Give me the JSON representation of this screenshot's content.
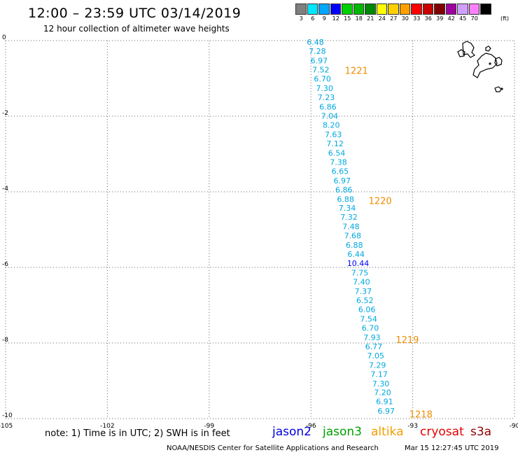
{
  "header": {
    "title": "12:00 – 23:59 UTC 03/14/2019",
    "subtitle": "12 hour collection of altimeter wave heights"
  },
  "color_scale": {
    "unit": "(ft)",
    "items": [
      {
        "label": "3",
        "color": "#7f7f7f"
      },
      {
        "label": "6",
        "color": "#00e8ff"
      },
      {
        "label": "9",
        "color": "#00a8ff"
      },
      {
        "label": "12",
        "color": "#0000ff"
      },
      {
        "label": "15",
        "color": "#00d000"
      },
      {
        "label": "18",
        "color": "#00b800"
      },
      {
        "label": "21",
        "color": "#008800"
      },
      {
        "label": "24",
        "color": "#ffff00"
      },
      {
        "label": "27",
        "color": "#ffd000"
      },
      {
        "label": "30",
        "color": "#ffa000"
      },
      {
        "label": "33",
        "color": "#ff0000"
      },
      {
        "label": "36",
        "color": "#c80000"
      },
      {
        "label": "39",
        "color": "#800000"
      },
      {
        "label": "42",
        "color": "#a000a0"
      },
      {
        "label": "45",
        "color": "#d0a0ff"
      },
      {
        "label": "70",
        "color": "#ff80ff"
      },
      {
        "label": "",
        "color": "#000000"
      }
    ]
  },
  "chart_data": {
    "type": "scatter",
    "xlim": [
      -105,
      -90
    ],
    "ylim": [
      -10,
      0
    ],
    "x_ticks": [
      "-105",
      "-102",
      "-99",
      "-96",
      "-93",
      "-90"
    ],
    "y_ticks": [
      "0",
      "-2",
      "-4",
      "-6",
      "-8",
      "-10"
    ],
    "grid": true,
    "points": [
      {
        "lon": -95.87,
        "lat": -0.04,
        "swh": "6.48",
        "color": "#00a8e0"
      },
      {
        "lon": -95.81,
        "lat": -0.28,
        "swh": "7.28",
        "color": "#00a8e0"
      },
      {
        "lon": -95.76,
        "lat": -0.53,
        "swh": "6.97",
        "color": "#00a8e0"
      },
      {
        "lon": -95.71,
        "lat": -0.77,
        "swh": "7.52",
        "color": "#00a8e0"
      },
      {
        "lon": -95.66,
        "lat": -1.01,
        "swh": "6.70",
        "color": "#00a8e0"
      },
      {
        "lon": -95.6,
        "lat": -1.26,
        "swh": "7.30",
        "color": "#00a8e0"
      },
      {
        "lon": -95.55,
        "lat": -1.5,
        "swh": "7.23",
        "color": "#00a8e0"
      },
      {
        "lon": -95.5,
        "lat": -1.75,
        "swh": "6.86",
        "color": "#00a8e0"
      },
      {
        "lon": -95.45,
        "lat": -1.99,
        "swh": "7.04",
        "color": "#00a8e0"
      },
      {
        "lon": -95.4,
        "lat": -2.23,
        "swh": "8.20",
        "color": "#00a8e0"
      },
      {
        "lon": -95.34,
        "lat": -2.48,
        "swh": "7.63",
        "color": "#00a8e0"
      },
      {
        "lon": -95.29,
        "lat": -2.72,
        "swh": "7.12",
        "color": "#00a8e0"
      },
      {
        "lon": -95.24,
        "lat": -2.97,
        "swh": "6.54",
        "color": "#00a8e0"
      },
      {
        "lon": -95.19,
        "lat": -3.21,
        "swh": "7.38",
        "color": "#00a8e0"
      },
      {
        "lon": -95.14,
        "lat": -3.45,
        "swh": "6.65",
        "color": "#00a8e0"
      },
      {
        "lon": -95.08,
        "lat": -3.7,
        "swh": "6.97",
        "color": "#00a8e0"
      },
      {
        "lon": -95.03,
        "lat": -3.94,
        "swh": "6.86",
        "color": "#00a8e0"
      },
      {
        "lon": -94.98,
        "lat": -4.19,
        "swh": "6.88",
        "color": "#00a8e0"
      },
      {
        "lon": -94.93,
        "lat": -4.43,
        "swh": "7.34",
        "color": "#00a8e0"
      },
      {
        "lon": -94.88,
        "lat": -4.67,
        "swh": "7.32",
        "color": "#00a8e0"
      },
      {
        "lon": -94.82,
        "lat": -4.92,
        "swh": "7.48",
        "color": "#00a8e0"
      },
      {
        "lon": -94.77,
        "lat": -5.16,
        "swh": "7.68",
        "color": "#00a8e0"
      },
      {
        "lon": -94.72,
        "lat": -5.41,
        "swh": "6.88",
        "color": "#00a8e0"
      },
      {
        "lon": -94.67,
        "lat": -5.65,
        "swh": "6.44",
        "color": "#00a8e0"
      },
      {
        "lon": -94.61,
        "lat": -5.89,
        "swh": "10.44",
        "color": "#0000ff"
      },
      {
        "lon": -94.56,
        "lat": -6.14,
        "swh": "7.75",
        "color": "#00a8e0"
      },
      {
        "lon": -94.51,
        "lat": -6.38,
        "swh": "7.40",
        "color": "#00a8e0"
      },
      {
        "lon": -94.46,
        "lat": -6.63,
        "swh": "7.37",
        "color": "#00a8e0"
      },
      {
        "lon": -94.41,
        "lat": -6.87,
        "swh": "6.52",
        "color": "#00a8e0"
      },
      {
        "lon": -94.35,
        "lat": -7.11,
        "swh": "6.06",
        "color": "#00a8e0"
      },
      {
        "lon": -94.3,
        "lat": -7.36,
        "swh": "7.54",
        "color": "#00a8e0"
      },
      {
        "lon": -94.25,
        "lat": -7.6,
        "swh": "6.70",
        "color": "#00a8e0"
      },
      {
        "lon": -94.2,
        "lat": -7.85,
        "swh": "7.93",
        "color": "#00a8e0"
      },
      {
        "lon": -94.15,
        "lat": -8.09,
        "swh": "6.77",
        "color": "#00a8e0"
      },
      {
        "lon": -94.09,
        "lat": -8.33,
        "swh": "7.05",
        "color": "#00a8e0"
      },
      {
        "lon": -94.04,
        "lat": -8.58,
        "swh": "7.29",
        "color": "#00a8e0"
      },
      {
        "lon": -93.99,
        "lat": -8.82,
        "swh": "7.17",
        "color": "#00a8e0"
      },
      {
        "lon": -93.94,
        "lat": -9.07,
        "swh": "7.30",
        "color": "#00a8e0"
      },
      {
        "lon": -93.89,
        "lat": -9.31,
        "swh": "7.20",
        "color": "#00a8e0"
      },
      {
        "lon": -93.83,
        "lat": -9.55,
        "swh": "6.91",
        "color": "#00a8e0"
      },
      {
        "lon": -93.78,
        "lat": -9.8,
        "swh": "6.97",
        "color": "#00a8e0"
      }
    ],
    "pass_labels": [
      {
        "text": "1221",
        "lon": -95.0,
        "lat": -0.79,
        "color": "#f08c00"
      },
      {
        "text": "1220",
        "lon": -94.3,
        "lat": -4.23,
        "color": "#f08c00"
      },
      {
        "text": "1219",
        "lon": -93.5,
        "lat": -7.91,
        "color": "#f08c00"
      },
      {
        "text": "1218",
        "lon": -93.1,
        "lat": -9.88,
        "color": "#f08c00"
      }
    ]
  },
  "footer": {
    "note": "note: 1) Time is in UTC; 2) SWH is in feet",
    "satellites": [
      {
        "name": "jason2",
        "color": "#0000e0"
      },
      {
        "name": "jason3",
        "color": "#00a000"
      },
      {
        "name": "altika",
        "color": "#f0a000"
      },
      {
        "name": "cryosat",
        "color": "#e00000"
      },
      {
        "name": "s3a",
        "color": "#900000"
      }
    ],
    "credit": "NOAA/NESDIS Center for Satellite Applications and Research",
    "generated": "Mar 15 12:27:45 UTC 2019"
  }
}
